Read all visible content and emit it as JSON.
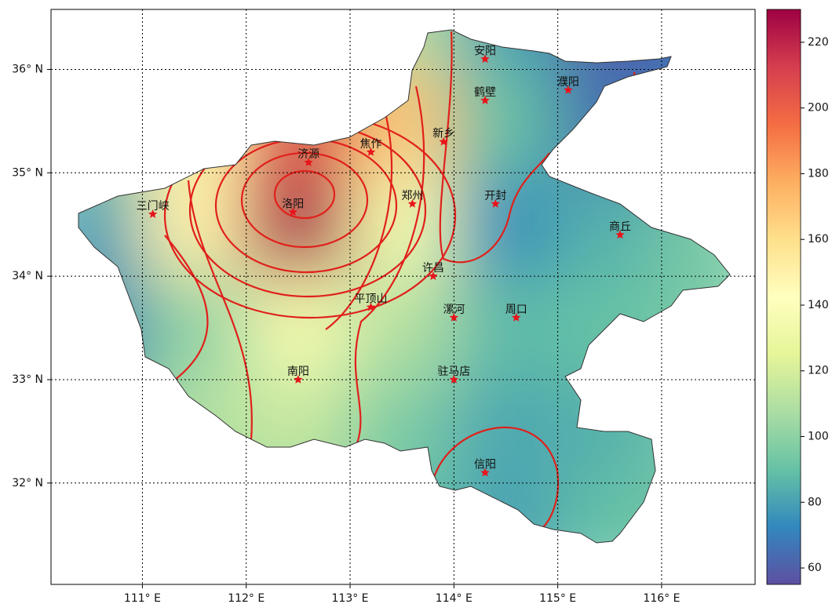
{
  "chart_data": {
    "type": "heatmap-map",
    "xlim": [
      110.12,
      116.9
    ],
    "ylim": [
      31.02,
      36.58
    ],
    "xticks": [
      {
        "value": 111,
        "label": "111° E"
      },
      {
        "value": 112,
        "label": "112° E"
      },
      {
        "value": 113,
        "label": "113° E"
      },
      {
        "value": 114,
        "label": "114° E"
      },
      {
        "value": 115,
        "label": "115° E"
      },
      {
        "value": 116,
        "label": "116° E"
      }
    ],
    "yticks": [
      {
        "value": 32,
        "label": "32° N"
      },
      {
        "value": 33,
        "label": "33° N"
      },
      {
        "value": 34,
        "label": "34° N"
      },
      {
        "value": 35,
        "label": "35° N"
      },
      {
        "value": 36,
        "label": "36° N"
      }
    ],
    "grid": true,
    "lons": [
      110.5,
      111.5,
      112.5,
      113.5,
      114.5,
      115.5,
      116.5
    ],
    "lats": [
      36.5,
      35.5,
      34.5,
      33.5,
      32.5,
      31.5
    ],
    "values": [
      [
        80,
        85,
        95,
        110,
        80,
        60,
        65
      ],
      [
        100,
        150,
        205,
        170,
        90,
        65,
        70
      ],
      [
        80,
        150,
        225,
        135,
        75,
        85,
        95
      ],
      [
        70,
        100,
        135,
        110,
        88,
        90,
        95
      ],
      [
        85,
        110,
        115,
        95,
        82,
        85,
        95
      ],
      [
        90,
        95,
        100,
        90,
        80,
        90,
        95
      ]
    ],
    "colorbar": {
      "clim": [
        55,
        230
      ],
      "ticks": [
        60,
        80,
        100,
        120,
        140,
        160,
        180,
        200,
        220
      ]
    },
    "cities": [
      {
        "name": "安阳",
        "lon": 114.3,
        "lat": 36.1
      },
      {
        "name": "鹤壁",
        "lon": 114.3,
        "lat": 35.7
      },
      {
        "name": "濮阳",
        "lon": 115.1,
        "lat": 35.8
      },
      {
        "name": "新乡",
        "lon": 113.9,
        "lat": 35.3
      },
      {
        "name": "焦作",
        "lon": 113.2,
        "lat": 35.2
      },
      {
        "name": "济源",
        "lon": 112.6,
        "lat": 35.1
      },
      {
        "name": "三门峡",
        "lon": 111.1,
        "lat": 34.6
      },
      {
        "name": "洛阳",
        "lon": 112.45,
        "lat": 34.62
      },
      {
        "name": "郑州",
        "lon": 113.6,
        "lat": 34.7
      },
      {
        "name": "开封",
        "lon": 114.4,
        "lat": 34.7
      },
      {
        "name": "商丘",
        "lon": 115.6,
        "lat": 34.4
      },
      {
        "name": "许昌",
        "lon": 113.8,
        "lat": 34.0
      },
      {
        "name": "平顶山",
        "lon": 113.2,
        "lat": 33.7
      },
      {
        "name": "漯河",
        "lon": 114.0,
        "lat": 33.6
      },
      {
        "name": "周口",
        "lon": 114.6,
        "lat": 33.6
      },
      {
        "name": "南阳",
        "lon": 112.5,
        "lat": 33.0
      },
      {
        "name": "驻马店",
        "lon": 114.0,
        "lat": 33.0
      },
      {
        "name": "信阳",
        "lon": 114.3,
        "lat": 32.1
      }
    ]
  }
}
